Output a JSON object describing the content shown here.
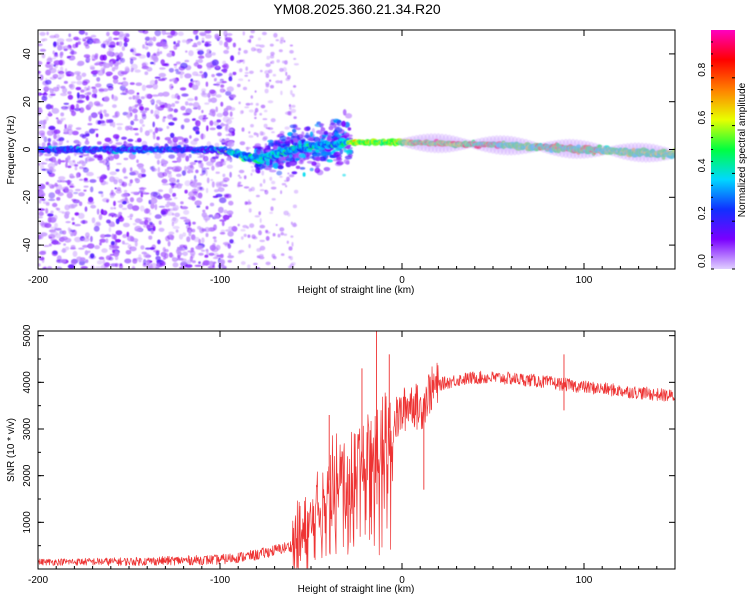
{
  "figure": {
    "title": "YM08.2025.360.21.34.R20"
  },
  "chart_data": [
    {
      "type": "heatmap",
      "title": "YM08.2025.360.21.34.R20",
      "xlabel": "Height of straight line (km)",
      "ylabel": "Frequency (Hz)",
      "xlim": [
        -200,
        150
      ],
      "ylim": [
        -50,
        50
      ],
      "x_ticks": [
        -200,
        -100,
        0,
        100
      ],
      "x_tick_labels": [
        "-200",
        "-100",
        "0",
        "100"
      ],
      "y_ticks": [
        -40,
        -20,
        0,
        20,
        40
      ],
      "y_tick_labels": [
        "-40",
        "-20",
        "0",
        "20",
        "40"
      ],
      "colorbar": {
        "label": "Normalized spectral amplitude",
        "range": [
          0,
          1
        ],
        "ticks": [
          0.0,
          0.2,
          0.4,
          0.6,
          0.8
        ],
        "tick_labels": [
          "0.0",
          "0.2",
          "0.4",
          "0.6",
          "0.8"
        ],
        "colormap": [
          "#e0d0ff",
          "#7a00ff",
          "#1030ff",
          "#00d8ff",
          "#00ff40",
          "#e8ff00",
          "#ff8000",
          "#ff0000",
          "#ff00c0"
        ]
      },
      "ridge": [
        {
          "x": -200,
          "y": 0
        },
        {
          "x": -100,
          "y": 0
        },
        {
          "x": -80,
          "y": -4
        },
        {
          "x": -60,
          "y": 0
        },
        {
          "x": -40,
          "y": 2
        },
        {
          "x": -30,
          "y": 3
        },
        {
          "x": -20,
          "y": 3
        },
        {
          "x": 0,
          "y": 3
        },
        {
          "x": 50,
          "y": 2
        },
        {
          "x": 100,
          "y": 0
        },
        {
          "x": 150,
          "y": -2
        }
      ]
    },
    {
      "type": "line",
      "xlabel": "Height of straight line (km)",
      "ylabel": "SNR (10 * v/v)",
      "xlim": [
        -200,
        150
      ],
      "ylim": [
        0,
        5100
      ],
      "x_ticks": [
        -200,
        -100,
        0,
        100
      ],
      "x_tick_labels": [
        "-200",
        "-100",
        "0",
        "100"
      ],
      "y_ticks": [
        1000,
        2000,
        3000,
        4000,
        5000
      ],
      "y_tick_labels": [
        "1000",
        "2000",
        "3000",
        "4000",
        "5000"
      ],
      "color": "#ee3333",
      "series": [
        {
          "name": "SNR",
          "x": [
            -200,
            -150,
            -100,
            -80,
            -60,
            -50,
            -45,
            -40,
            -35,
            -30,
            -25,
            -20,
            -15,
            -10,
            -5,
            0,
            5,
            10,
            15,
            20,
            30,
            40,
            50,
            60,
            70,
            80,
            90,
            100,
            110,
            120,
            130,
            140,
            150
          ],
          "y": [
            150,
            160,
            200,
            300,
            500,
            800,
            1400,
            1900,
            2100,
            2000,
            2300,
            2450,
            2700,
            2900,
            3100,
            3350,
            3600,
            3400,
            3800,
            3950,
            4050,
            4100,
            4100,
            4080,
            4050,
            4000,
            3950,
            3900,
            3860,
            3820,
            3780,
            3740,
            3700
          ]
        }
      ],
      "spikes": [
        {
          "x": -40,
          "y": 3300
        },
        {
          "x": -22,
          "y": 4300
        },
        {
          "x": -14,
          "y": 5100
        },
        {
          "x": -7,
          "y": 4600
        },
        {
          "x": 12,
          "y": 1700
        },
        {
          "x": 89,
          "y": 4600
        },
        {
          "x": 89,
          "y": 3400
        }
      ]
    }
  ]
}
